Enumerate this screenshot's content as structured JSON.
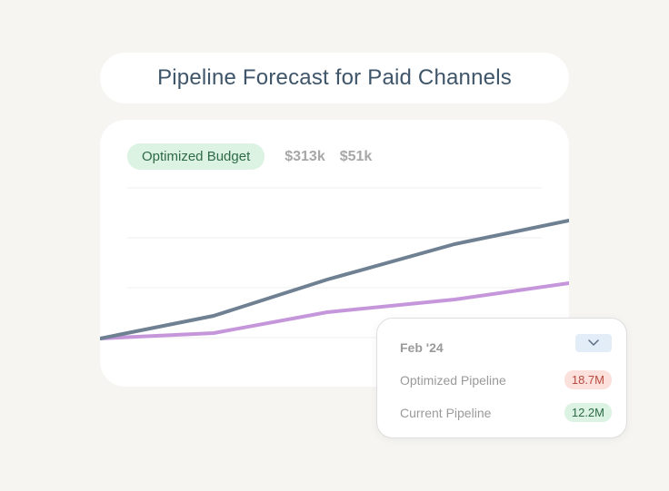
{
  "header": {
    "title": "Pipeline Forecast for Paid Channels"
  },
  "card": {
    "budget_label": "Optimized Budget",
    "budget_values": [
      "$313k",
      "$51k"
    ]
  },
  "chart_data": {
    "type": "line",
    "x": [
      0,
      1,
      2,
      3,
      4
    ],
    "series": [
      {
        "values": [
          0,
          25,
          65,
          104,
          130
        ],
        "color": "#6e8092"
      },
      {
        "values": [
          0,
          6,
          29,
          43,
          61
        ],
        "color": "#c696db"
      }
    ],
    "ylim": [
      -20,
      170
    ],
    "grid": true
  },
  "tooltip": {
    "date": "Feb '24",
    "dropdown_icon": "chevron-down-icon",
    "rows": [
      {
        "label": "Optimized Pipeline",
        "value": "18.7M",
        "tone": "red"
      },
      {
        "label": "Current Pipeline",
        "value": "12.2M",
        "tone": "green"
      }
    ]
  },
  "colors": {
    "background": "#f6f5f2",
    "title_text": "#3e556a",
    "optimized_badge_bg": "#fbe0dc",
    "current_badge_bg": "#dcf2e3"
  }
}
